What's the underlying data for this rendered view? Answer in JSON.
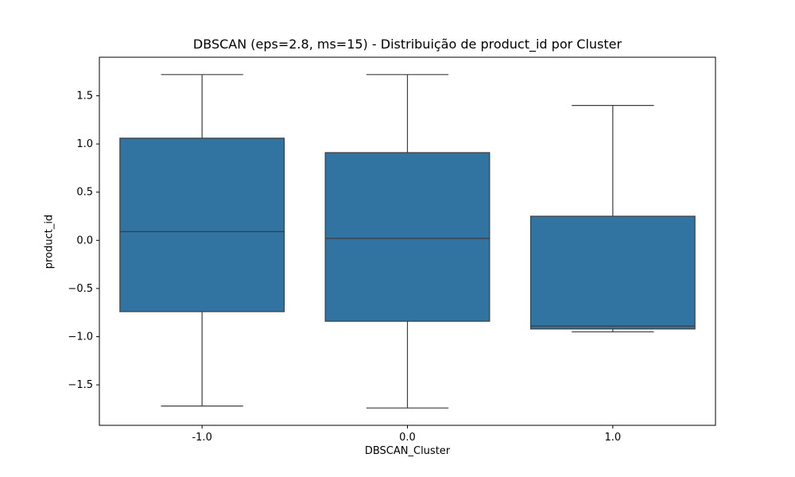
{
  "chart_data": {
    "type": "box",
    "title": "DBSCAN (eps=2.8, ms=15)  - Distribuição de product_id por Cluster",
    "xlabel": "DBSCAN_Cluster",
    "ylabel": "product_id",
    "ylim": [
      -1.92,
      1.9
    ],
    "yticks": [
      1.5,
      1.0,
      0.5,
      0.0,
      -0.5,
      -1.0,
      -1.5
    ],
    "ytick_labels": [
      "1.5",
      "1.0",
      "0.5",
      "0.0",
      "−0.5",
      "−1.0",
      "−1.5"
    ],
    "categories": [
      "-1.0",
      "0.0",
      "1.0"
    ],
    "boxes": [
      {
        "category": "-1.0",
        "whisker_low": -1.72,
        "q1": -0.74,
        "median": 0.09,
        "q3": 1.06,
        "whisker_high": 1.72
      },
      {
        "category": "0.0",
        "whisker_low": -1.74,
        "q1": -0.84,
        "median": 0.02,
        "q3": 0.91,
        "whisker_high": 1.72
      },
      {
        "category": "1.0",
        "whisker_low": -0.95,
        "q1": -0.92,
        "median": -0.89,
        "q3": 0.25,
        "whisker_high": 1.4
      }
    ],
    "color": "#3274a1",
    "line_color": "#3d3d3d",
    "grid": false
  }
}
